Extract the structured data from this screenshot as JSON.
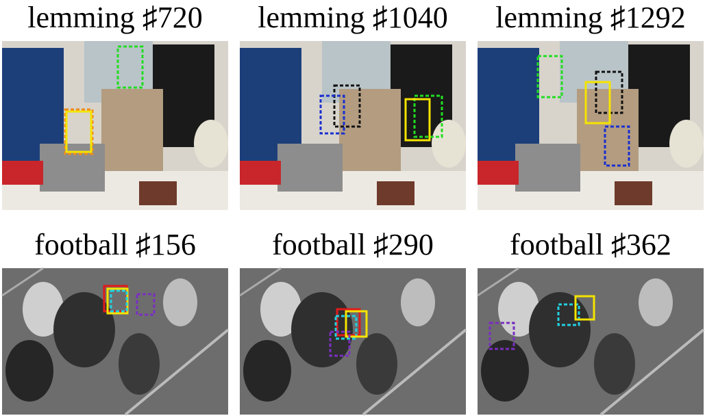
{
  "panels": [
    {
      "title": "lemming ♯720"
    },
    {
      "title": "lemming ♯1040"
    },
    {
      "title": "lemming ♯1292"
    },
    {
      "title": "football ♯156"
    },
    {
      "title": "football ♯290"
    },
    {
      "title": "football ♯362"
    }
  ]
}
